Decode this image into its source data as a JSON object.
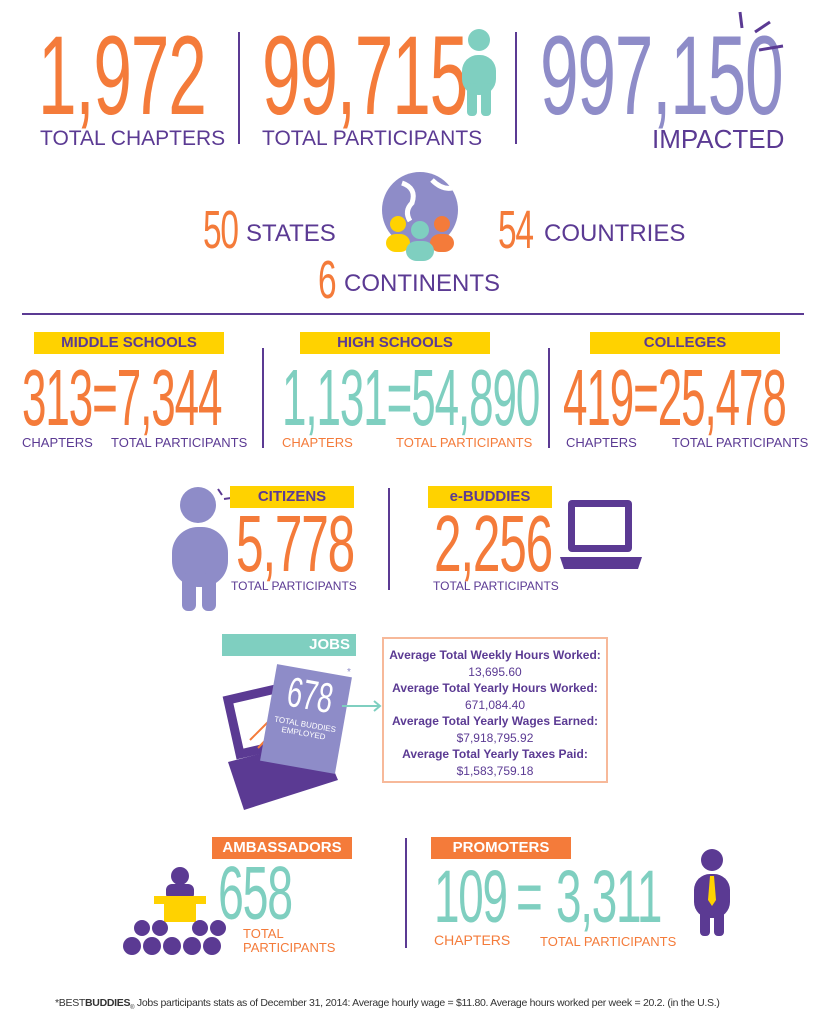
{
  "colors": {
    "orange": "#F47B3A",
    "purple": "#5B3A93",
    "lavender": "#8E8CC8",
    "teal": "#7FCFC0",
    "yellow": "#FFD200"
  },
  "top": {
    "chapters": {
      "value": "1,972",
      "label": "TOTAL CHAPTERS"
    },
    "participants": {
      "value": "99,715",
      "label": "TOTAL PARTICIPANTS"
    },
    "impacted": {
      "value": "997,150",
      "label": "IMPACTED"
    }
  },
  "reach": {
    "states": {
      "value": "50",
      "label": "STATES"
    },
    "countries": {
      "value": "54",
      "label": "COUNTRIES"
    },
    "continents": {
      "value": "6",
      "label": "CONTINENTS"
    }
  },
  "schools": [
    {
      "title": "MIDDLE SCHOOLS",
      "chapters": "313",
      "participants": "7,344",
      "chapters_label": "CHAPTERS",
      "participants_label": "TOTAL PARTICIPANTS"
    },
    {
      "title": "HIGH SCHOOLS",
      "chapters": "1,131",
      "participants": "54,890",
      "chapters_label": "CHAPTERS",
      "participants_label": "TOTAL PARTICIPANTS"
    },
    {
      "title": "COLLEGES",
      "chapters": "419",
      "participants": "25,478",
      "chapters_label": "CHAPTERS",
      "participants_label": "TOTAL PARTICIPANTS"
    }
  ],
  "equals": "=",
  "citizens": {
    "title": "CITIZENS",
    "value": "5,778",
    "label": "TOTAL PARTICIPANTS"
  },
  "ebuddies": {
    "title": "e-BUDDIES",
    "value": "2,256",
    "label": "TOTAL PARTICIPANTS"
  },
  "jobs": {
    "title": "JOBS",
    "employed": "678",
    "asterisk": "*",
    "employed_label": "TOTAL BUDDIES EMPLOYED",
    "stats": [
      {
        "label": "Average Total Weekly Hours Worked:",
        "value": "13,695.60"
      },
      {
        "label": "Average Total Yearly Hours Worked:",
        "value": "671,084.40"
      },
      {
        "label": "Average Total Yearly Wages Earned:",
        "value": "$7,918,795.92"
      },
      {
        "label": "Average Total Yearly Taxes Paid:",
        "value": "$1,583,759.18"
      }
    ]
  },
  "ambassadors": {
    "title": "AMBASSADORS",
    "value": "658",
    "label_line1": "TOTAL",
    "label_line2": "PARTICIPANTS"
  },
  "promoters": {
    "title": "PROMOTERS",
    "chapters": "109",
    "participants": "3,311",
    "chapters_label": "CHAPTERS",
    "participants_label": "TOTAL PARTICIPANTS"
  },
  "footnote": {
    "prefix": "*BEST",
    "brand": "BUDDIES",
    "reg": "®",
    "text": " Jobs participants stats as of December 31, 2014: Average hourly wage = $11.80. Average hours worked per week = 20.2. (in the U.S.)"
  }
}
